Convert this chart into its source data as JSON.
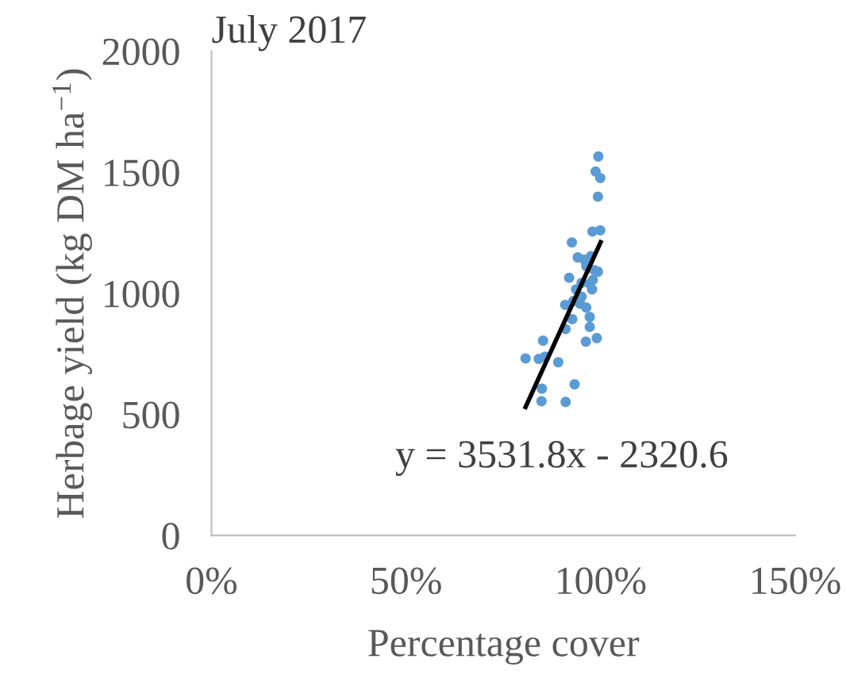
{
  "chart_data": {
    "type": "scatter",
    "title": "July 2017",
    "xlabel": "Percentage cover",
    "ylabel": "Herbage yield (kg DM ha$^{−1}$)",
    "annotations": [
      "y = 3531.8x - 2320.6"
    ],
    "xlim": [
      0,
      1.5
    ],
    "xticks": [
      {
        "value": 0,
        "label": "0%"
      },
      {
        "value": 0.5,
        "label": "50%"
      },
      {
        "value": 1.0,
        "label": "100%"
      },
      {
        "value": 1.5,
        "label": "150%"
      }
    ],
    "ylim": [
      0,
      2000
    ],
    "yticks": [
      0,
      500,
      1000,
      1500,
      2000
    ],
    "grid": false,
    "legend": false,
    "marker": "circle",
    "series": [
      {
        "color": "#5b9bd5",
        "x": [
          0.994,
          0.987,
          0.999,
          0.993,
          0.979,
          0.999,
          0.926,
          0.941,
          0.958,
          0.975,
          0.963,
          0.983,
          0.993,
          0.919,
          0.98,
          0.951,
          0.972,
          0.937,
          0.978,
          0.951,
          0.93,
          0.909,
          0.947,
          0.963,
          0.927,
          0.972,
          0.972,
          0.91,
          0.962,
          0.99,
          0.852,
          0.807,
          0.841,
          0.857,
          0.891,
          0.933,
          0.849,
          0.848,
          0.91
        ],
        "values": [
          1565,
          1503,
          1476,
          1399,
          1255,
          1260,
          1210,
          1148,
          1139,
          1153,
          1112,
          1096,
          1089,
          1064,
          1055,
          1043,
          1039,
          1016,
          1016,
          986,
          968,
          952,
          957,
          941,
          893,
          902,
          861,
          852,
          800,
          815,
          804,
          731,
          729,
          738,
          715,
          624,
          606,
          554,
          551
        ]
      },
      {
        "type": "line",
        "color": "#000000",
        "x": [
          0.807,
          1.0
        ],
        "values": [
          530,
          1211
        ],
        "marker": "none",
        "line_style": "solid"
      }
    ]
  }
}
